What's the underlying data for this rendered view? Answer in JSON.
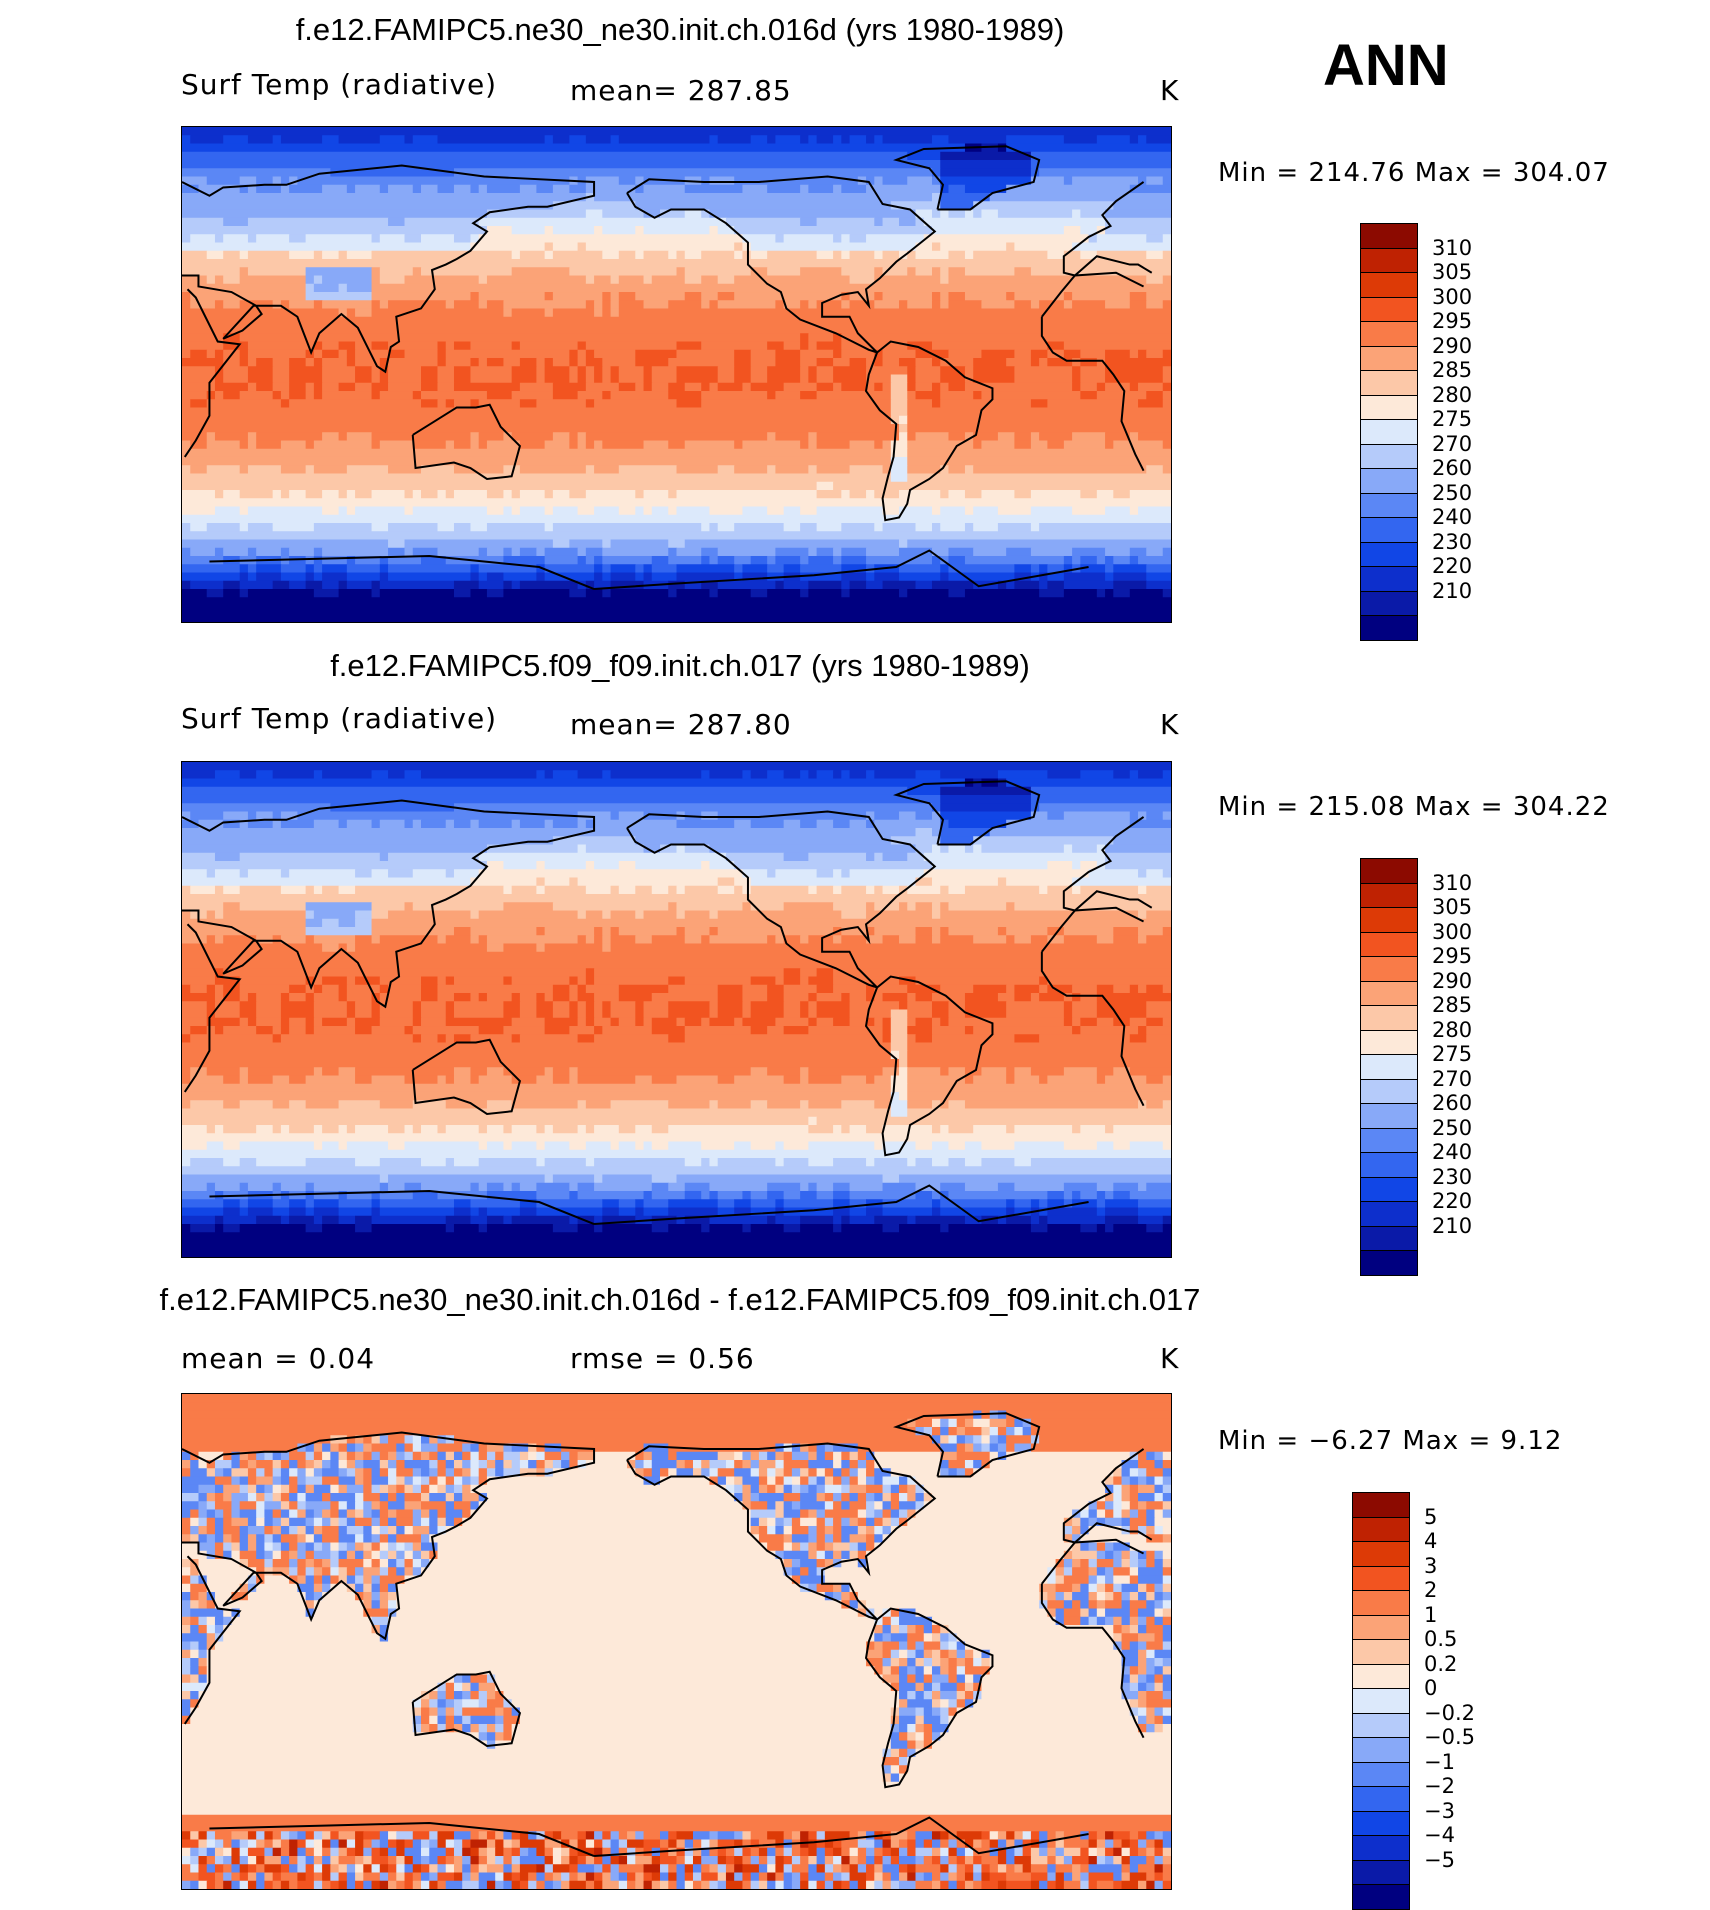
{
  "season": "ANN",
  "palettes": {
    "temp": [
      "#000080",
      "#0a1aa8",
      "#0d2fcc",
      "#1146e6",
      "#3366f0",
      "#5b87f5",
      "#88a9f8",
      "#b5cbfa",
      "#dce9fb",
      "#fde9d9",
      "#fcc8a8",
      "#fba377",
      "#f97b48",
      "#f25420",
      "#dd3a06",
      "#bf2202",
      "#8c0a00"
    ],
    "diff": [
      "#000080",
      "#0a1aa8",
      "#0d2fcc",
      "#1146e6",
      "#3366f0",
      "#5b87f5",
      "#88a9f8",
      "#b5cbfa",
      "#dce9fb",
      "#fde9d9",
      "#fcc8a8",
      "#fba377",
      "#f97b48",
      "#f25420",
      "#dd3a06",
      "#bf2202",
      "#8c0a00"
    ]
  },
  "panels": [
    {
      "title": "f.e12.FAMIPC5.ne30_ne30.init.ch.016d (yrs 1980-1989)",
      "left_label": "Surf Temp (radiative)",
      "center_label": "mean=  287.85",
      "units": "K",
      "min_label": "Min",
      "min_value": "214.76",
      "max_label": "Max",
      "max_value": "304.07",
      "map_type": "temp",
      "colorbar": {
        "labels": [
          "310",
          "305",
          "300",
          "295",
          "290",
          "285",
          "280",
          "275",
          "270",
          "260",
          "250",
          "240",
          "230",
          "220",
          "210"
        ]
      }
    },
    {
      "title": "f.e12.FAMIPC5.f09_f09.init.ch.017 (yrs 1980-1989)",
      "left_label": "Surf Temp (radiative)",
      "center_label": "mean=  287.80",
      "units": "K",
      "min_label": "Min",
      "min_value": "215.08",
      "max_label": "Max",
      "max_value": "304.22",
      "map_type": "temp",
      "colorbar": {
        "labels": [
          "310",
          "305",
          "300",
          "295",
          "290",
          "285",
          "280",
          "275",
          "270",
          "260",
          "250",
          "240",
          "230",
          "220",
          "210"
        ]
      }
    },
    {
      "title": "f.e12.FAMIPC5.ne30_ne30.init.ch.016d - f.e12.FAMIPC5.f09_f09.init.ch.017",
      "left_label": "mean =    0.04",
      "center_label": "rmse =    0.56",
      "units": "K",
      "min_label": "Min",
      "min_value": "−6.27",
      "max_label": "Max",
      "max_value": "9.12",
      "map_type": "diff",
      "colorbar": {
        "labels": [
          "5",
          "4",
          "3",
          "2",
          "1",
          "0.5",
          "0.2",
          "0",
          "−0.2",
          "−0.5",
          "−1",
          "−2",
          "−3",
          "−4",
          "−5"
        ]
      }
    }
  ]
}
